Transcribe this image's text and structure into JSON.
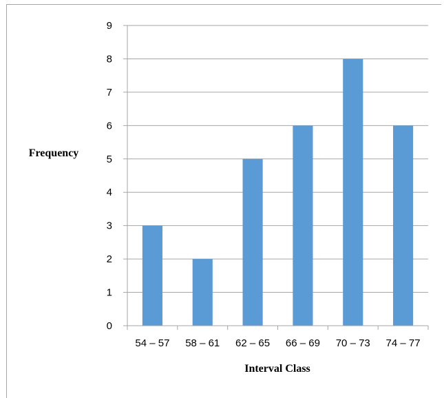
{
  "chart_data": {
    "type": "bar",
    "categories": [
      "54 – 57",
      "58 – 61",
      "62 – 65",
      "66 – 69",
      "70 – 73",
      "74 – 77"
    ],
    "values": [
      3,
      2,
      5,
      6,
      8,
      6
    ],
    "title": "",
    "xlabel": "Interval Class",
    "ylabel": "Frequency",
    "ylim": [
      0,
      9
    ],
    "yticks": [
      0,
      1,
      2,
      3,
      4,
      5,
      6,
      7,
      8,
      9
    ],
    "grid": true,
    "legend": "none",
    "bar_color": "#5b9bd5",
    "grid_color": "#a6a6a6"
  }
}
